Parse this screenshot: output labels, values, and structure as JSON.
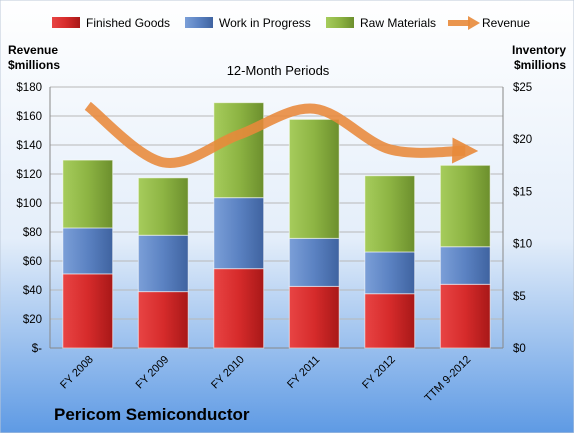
{
  "chart_data": {
    "type": "bar",
    "stacked": true,
    "title": "12-Month Periods",
    "company": "Pericom Semiconductor",
    "left_axis_label": [
      "Revenue",
      "$millions"
    ],
    "right_axis_label": [
      "Inventory",
      "$millions"
    ],
    "categories": [
      "FY 2008",
      "FY 2009",
      "FY 2010",
      "FY 2011",
      "FY 2012",
      "TTM 9-2012"
    ],
    "series": [
      {
        "name": "Finished Goods",
        "axis": "right",
        "color": "#d62b2b",
        "values": [
          7.1,
          5.4,
          7.6,
          5.9,
          5.2,
          6.1
        ]
      },
      {
        "name": "Work in Progress",
        "axis": "right",
        "color": "#5b82c2",
        "values": [
          4.4,
          5.4,
          6.8,
          4.6,
          4.0,
          3.6
        ]
      },
      {
        "name": "Raw Materials",
        "axis": "right",
        "color": "#8db443",
        "values": [
          6.5,
          5.5,
          9.1,
          11.4,
          7.3,
          7.8
        ]
      }
    ],
    "line_series": {
      "name": "Revenue",
      "axis": "left",
      "color": "#e8893a",
      "values": [
        167,
        128,
        147,
        165,
        137,
        136
      ]
    },
    "ylim_left": [
      0,
      180
    ],
    "ylim_right": [
      0,
      25
    ],
    "left_ticks": [
      {
        "value": 180,
        "label": "$180"
      },
      {
        "value": 160,
        "label": "$160"
      },
      {
        "value": 140,
        "label": "$140"
      },
      {
        "value": 120,
        "label": "$120"
      },
      {
        "value": 100,
        "label": "$100"
      },
      {
        "value": 80,
        "label": "$80"
      },
      {
        "value": 60,
        "label": "$60"
      },
      {
        "value": 40,
        "label": "$40"
      },
      {
        "value": 20,
        "label": "$20"
      },
      {
        "value": 0,
        "label": "$-"
      }
    ],
    "right_ticks": [
      {
        "value": 25,
        "label": "$25"
      },
      {
        "value": 20,
        "label": "$20"
      },
      {
        "value": 15,
        "label": "$15"
      },
      {
        "value": 10,
        "label": "$10"
      },
      {
        "value": 5,
        "label": "$5"
      },
      {
        "value": 0,
        "label": "$0"
      }
    ],
    "grid": true,
    "legend_position": "top"
  }
}
